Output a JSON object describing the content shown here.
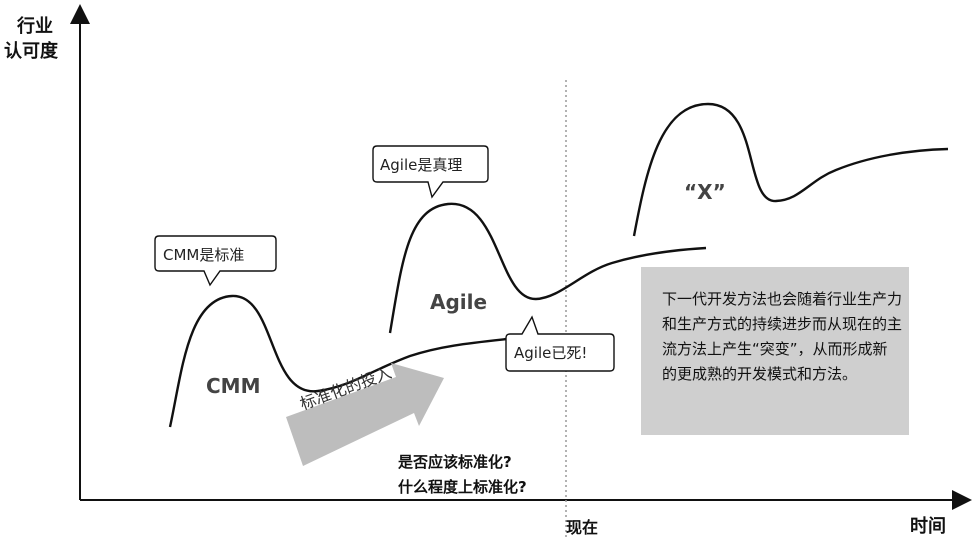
{
  "axes": {
    "y_label_line1": "行业",
    "y_label_line2": "认可度",
    "x_label_now": "现在",
    "x_label_time": "时间"
  },
  "curves": {
    "cmm": "CMM",
    "agile": "Agile",
    "x": "“X”"
  },
  "callouts": {
    "cmm_standard": "CMM是标准",
    "agile_truth": "Agile是真理",
    "agile_dead": "Agile已死!"
  },
  "arrow": {
    "label": "标准化的投入"
  },
  "questions": {
    "line1": "是否应该标准化?",
    "line2": "什么程度上标准化?"
  },
  "note": {
    "text": "下一代开发方法也会随着行业生产力和生产方式的持续进步而从现在的主流方法上产生“突变”，从而形成新的更成熟的开发模式和方法。"
  },
  "colors": {
    "curve": "#111111",
    "arrow_fill": "#bdbdbd",
    "note_box": "#cfcfcf",
    "dotted_line": "#999999"
  }
}
